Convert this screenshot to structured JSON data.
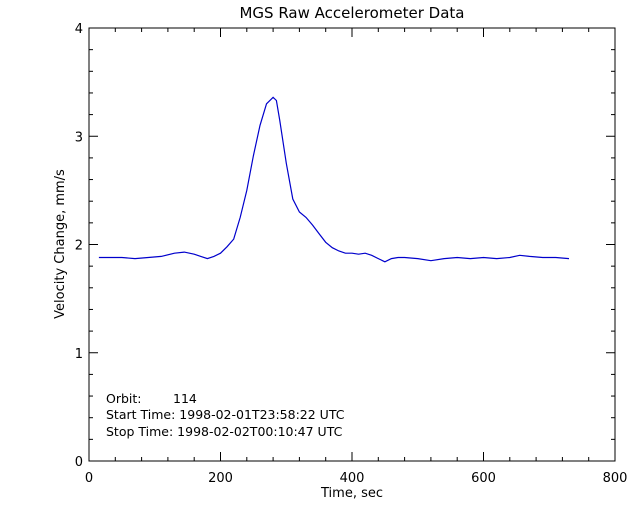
{
  "chart_data": {
    "type": "line",
    "title": "MGS Raw Accelerometer Data",
    "xlabel": "Time, sec",
    "ylabel": "Velocity Change, mm/s",
    "xlim": [
      0,
      800
    ],
    "ylim": [
      0,
      4
    ],
    "x_ticks": [
      0,
      200,
      400,
      600,
      800
    ],
    "y_ticks": [
      0,
      1,
      2,
      3,
      4
    ],
    "grid": false,
    "line_color": "#0000cc",
    "series": [
      {
        "x": [
          15,
          30,
          50,
          70,
          90,
          110,
          130,
          145,
          160,
          170,
          180,
          190,
          200,
          210,
          220,
          230,
          240,
          250,
          260,
          270,
          280,
          285,
          290,
          300,
          310,
          320,
          330,
          340,
          350,
          360,
          370,
          380,
          390,
          400,
          410,
          420,
          430,
          440,
          450,
          460,
          470,
          480,
          500,
          520,
          540,
          560,
          580,
          600,
          620,
          640,
          655,
          670,
          690,
          710,
          730
        ],
        "y": [
          1.88,
          1.88,
          1.88,
          1.87,
          1.88,
          1.89,
          1.92,
          1.93,
          1.91,
          1.89,
          1.87,
          1.89,
          1.92,
          1.98,
          2.05,
          2.25,
          2.5,
          2.82,
          3.1,
          3.3,
          3.36,
          3.33,
          3.15,
          2.75,
          2.42,
          2.3,
          2.25,
          2.18,
          2.1,
          2.02,
          1.97,
          1.94,
          1.92,
          1.92,
          1.91,
          1.92,
          1.9,
          1.87,
          1.84,
          1.87,
          1.88,
          1.88,
          1.87,
          1.85,
          1.87,
          1.88,
          1.87,
          1.88,
          1.87,
          1.88,
          1.9,
          1.89,
          1.88,
          1.88,
          1.87
        ]
      }
    ]
  },
  "annotations": {
    "orbit_label": "Orbit:",
    "orbit_value": "114",
    "start_time": "Start Time: 1998-02-01T23:58:22 UTC",
    "stop_time": "Stop Time: 1998-02-02T00:10:47 UTC"
  }
}
